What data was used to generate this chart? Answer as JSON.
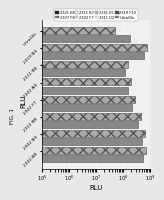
{
  "fig_label": "FIG. 1",
  "xlabel": "RLU",
  "ylabel": "RLU",
  "legend_labels": [
    "2321 E8",
    "2307 F8",
    "2311 B7",
    "2302 F7",
    "2341 E5",
    "2311 D2",
    "2319 F10",
    "UltraGlo"
  ],
  "legend_facecolors": [
    "#222222",
    "#888888",
    "#ffffff",
    "#dddddd",
    "#aaaaaa",
    "#eeeeee",
    "#555555",
    "#bbbbbb"
  ],
  "legend_hatches": [
    "xx",
    "..",
    "",
    "//",
    "..",
    "",
    "xx",
    ".."
  ],
  "legend_edgecolors": [
    "#222222",
    "#666666",
    "#666666",
    "#999999",
    "#999999",
    "#aaaaaa",
    "#444444",
    "#777777"
  ],
  "y_labels": [
    "2302 B8",
    "2302 B4",
    "2311 B8",
    "2302 F7",
    "2302 A4",
    "2311 B8",
    "2319 B4",
    "UltraGlo"
  ],
  "bar_values_dotted": [
    720000000.0,
    680000000.0,
    480000000.0,
    280000000.0,
    200000000.0,
    150000000.0,
    780000000.0,
    52000000.0
  ],
  "bar_values_solid": [
    580000000.0,
    520000000.0,
    380000000.0,
    220000000.0,
    160000000.0,
    120000000.0,
    620000000.0,
    180000000.0
  ],
  "dotted_color": "#aaaaaa",
  "dotted_hatch": "xxx",
  "dotted_edge": "#555555",
  "solid_color": "#888888",
  "solid_hatch": "",
  "solid_edge": "#555555",
  "xlim": [
    100000.0,
    1000000000.0
  ],
  "background_color": "#e8e8e8",
  "plot_bg": "#f0f0f0",
  "grid_color": "#ffffff"
}
